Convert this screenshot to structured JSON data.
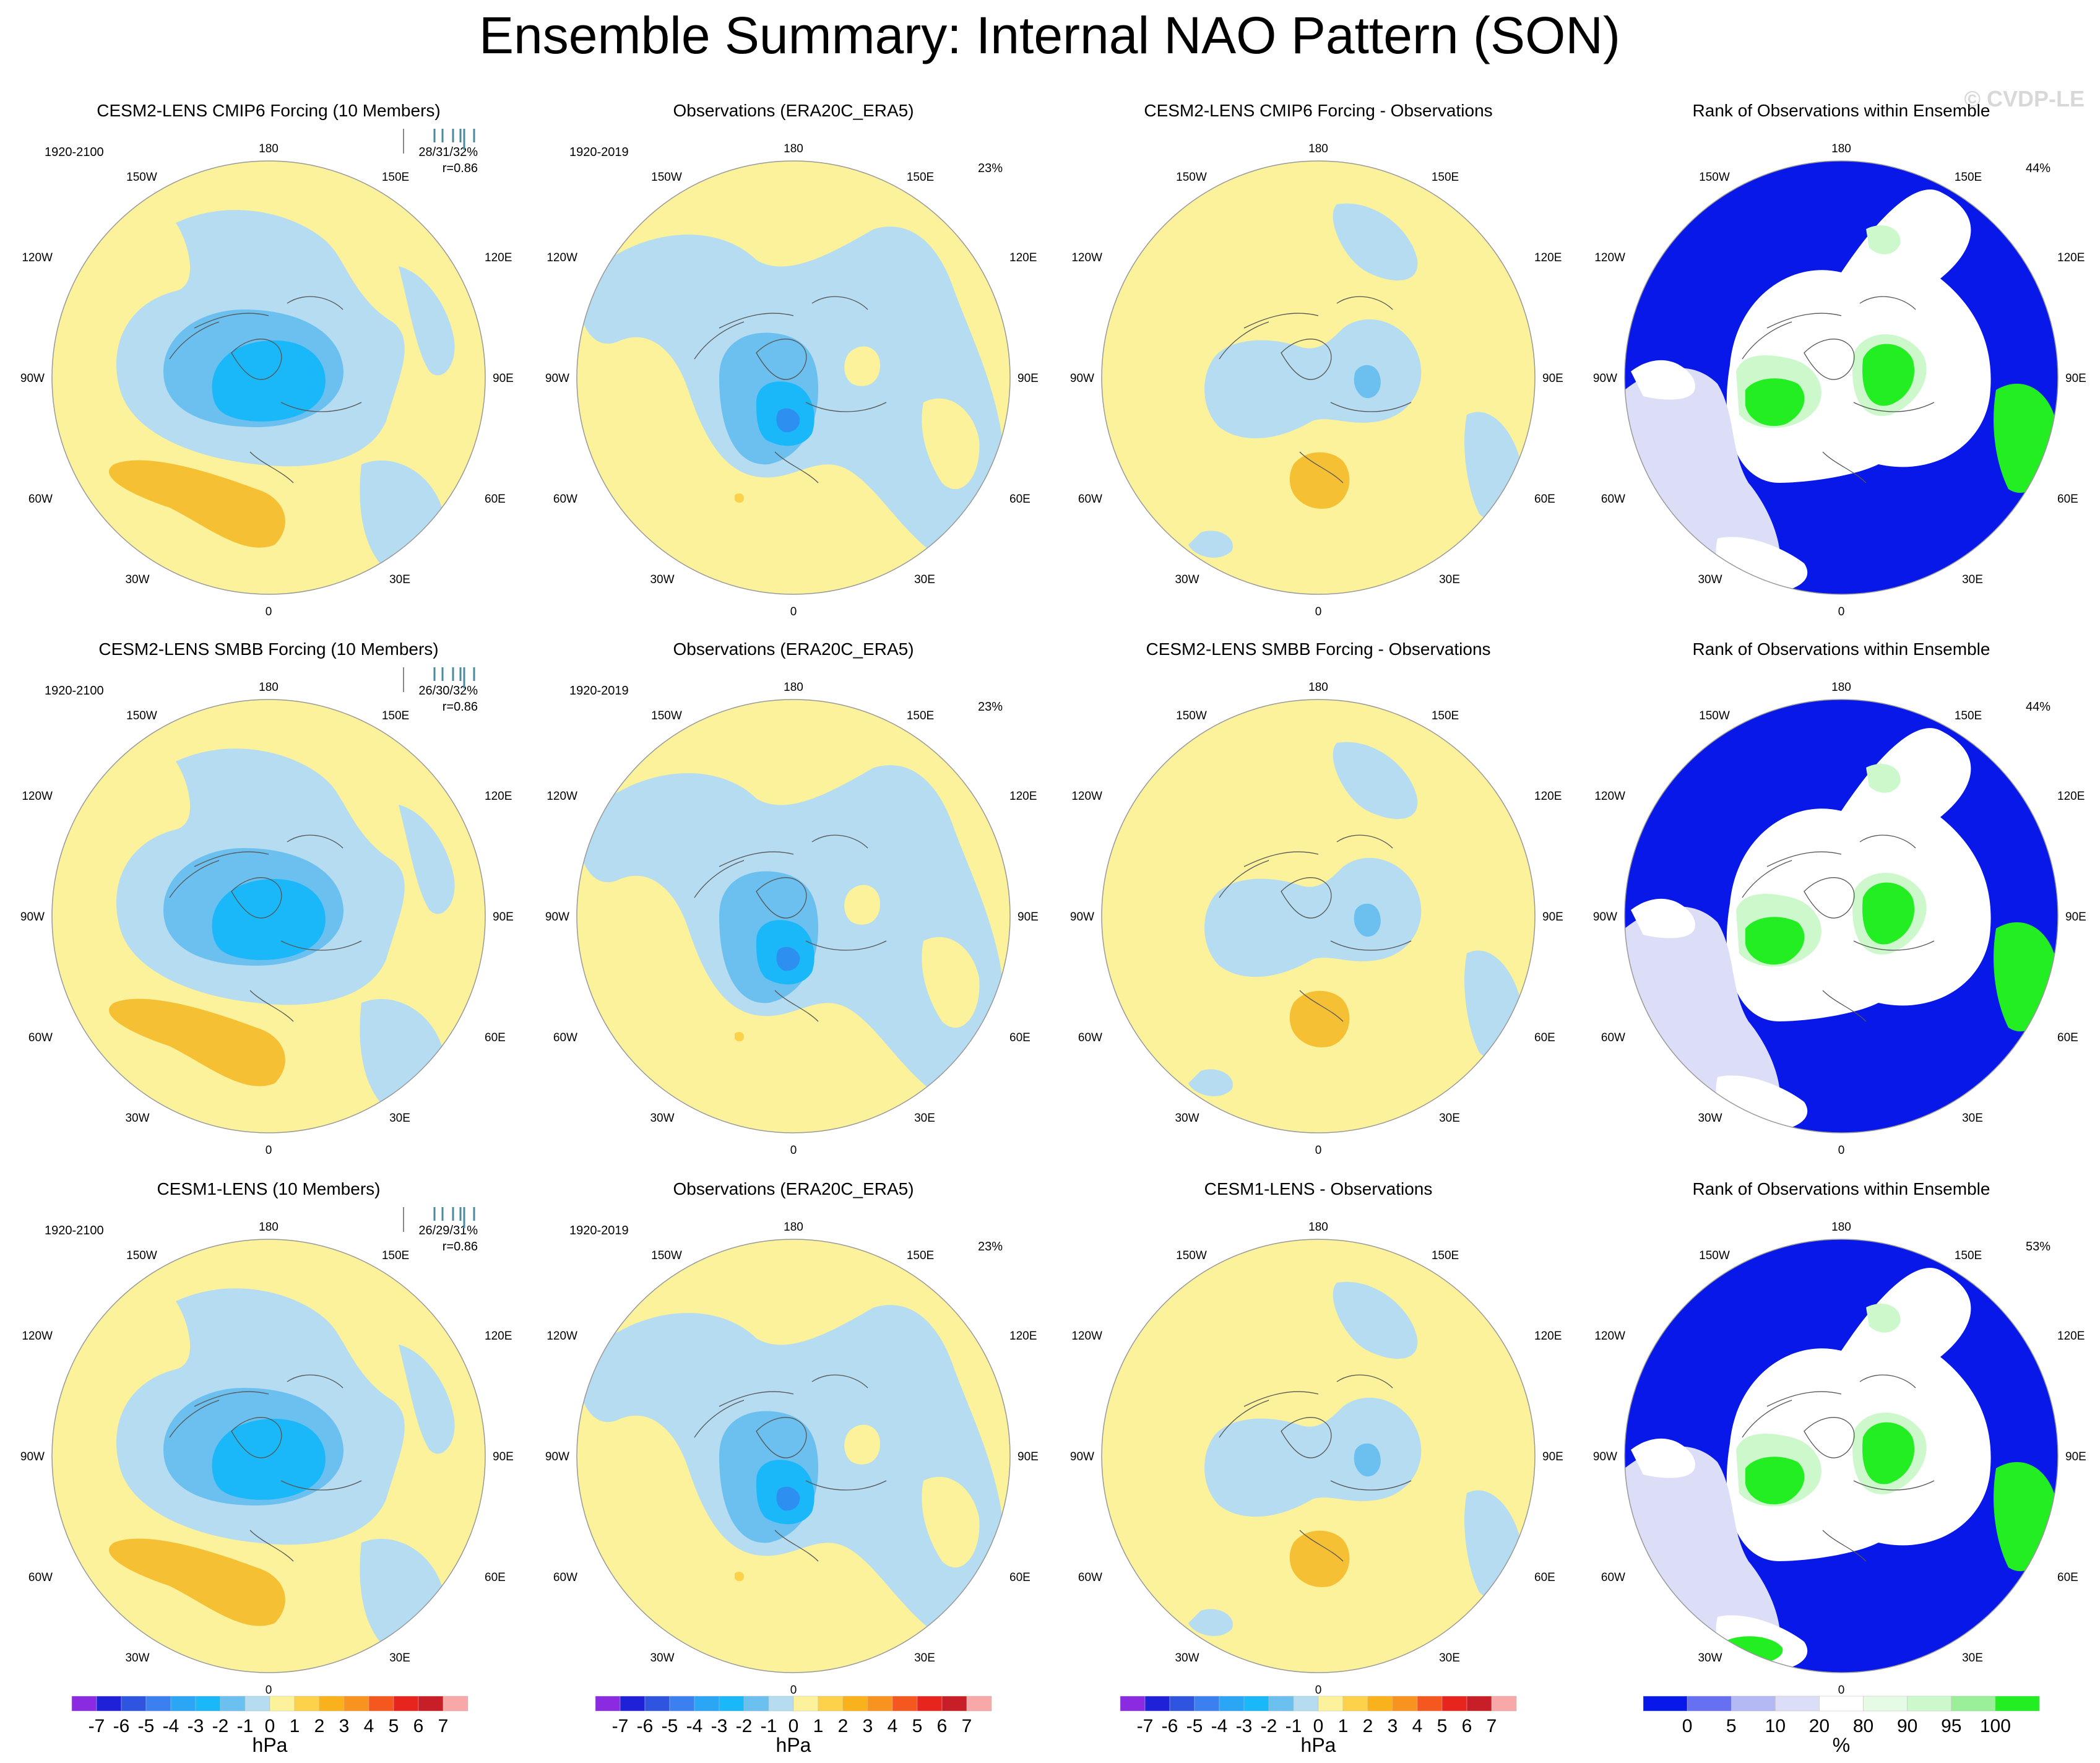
{
  "title": "Ensemble Summary: Internal NAO Pattern (SON)",
  "watermark": "© CVDP-LE",
  "colors": {
    "yellow": "#fbf29b",
    "lightblue": "#b5dcf0",
    "blue1": "#6cc0ef",
    "blue2": "#1ab8f8",
    "blue3": "#2d8ff0",
    "orange1": "#fcd24a",
    "orange2": "#f5c034",
    "rank_blue": "#0818e8",
    "rank_lav": "#dcdef8",
    "rank_white": "#ffffff",
    "rank_lgreen": "#ccf8cc",
    "rank_green": "#22ee22",
    "model_title_1": "#12607a",
    "model_title_2": "#5a8a5e",
    "model_title_3": "#c8c27a"
  },
  "grid_labels": {
    "top": "180",
    "bottom": "0",
    "left": "90W",
    "right": "90E",
    "upper_left_1": "150W",
    "upper_left_2": "120W",
    "upper_right_1": "150E",
    "upper_right_2": "120E",
    "lower_left_1": "60W",
    "lower_left_2": "30W",
    "lower_right_1": "60E",
    "lower_right_2": "30E"
  },
  "rows": [
    {
      "model": {
        "title": "CESM2-LENS CMIP6 Forcing (10 Members)",
        "period": "1920-2100",
        "pct": "28/31/32%",
        "r": "r=0.86"
      },
      "obs": {
        "title": "Observations (ERA20C_ERA5)",
        "period": "1920-2019",
        "pct": "23%"
      },
      "diff": {
        "title": "CESM2-LENS CMIP6 Forcing - Observations"
      },
      "rank": {
        "title": "Rank of Observations within Ensemble",
        "pct": "44%"
      }
    },
    {
      "model": {
        "title": "CESM2-LENS SMBB Forcing (10 Members)",
        "period": "1920-2100",
        "pct": "26/30/32%",
        "r": "r=0.86"
      },
      "obs": {
        "title": "Observations (ERA20C_ERA5)",
        "period": "1920-2019",
        "pct": "23%"
      },
      "diff": {
        "title": "CESM2-LENS SMBB Forcing - Observations"
      },
      "rank": {
        "title": "Rank of Observations within Ensemble",
        "pct": "44%"
      }
    },
    {
      "model": {
        "title": "CESM1-LENS (10 Members)",
        "period": "1920-2100",
        "pct": "26/29/31%",
        "r": "r=0.86"
      },
      "obs": {
        "title": "Observations (ERA20C_ERA5)",
        "period": "1920-2019",
        "pct": "23%"
      },
      "diff": {
        "title": "CESM1-LENS - Observations"
      },
      "rank": {
        "title": "Rank of Observations within Ensemble",
        "pct": "53%"
      }
    }
  ],
  "colorbar_hpa": {
    "unit": "hPa",
    "labels": [
      "-7",
      "-6",
      "-5",
      "-4",
      "-3",
      "-2",
      "-1",
      "0",
      "1",
      "2",
      "3",
      "4",
      "5",
      "6",
      "7"
    ],
    "colors": [
      "#8a2be2",
      "#2020d8",
      "#2f55e0",
      "#3b7ff0",
      "#2aa6f5",
      "#1ab8f8",
      "#6cc0ef",
      "#b5dcf0",
      "#fbf29b",
      "#fcd24a",
      "#f9b21c",
      "#f7931e",
      "#f5581e",
      "#e8241e",
      "#c81e28",
      "#f8a8a8"
    ]
  },
  "colorbar_rank": {
    "unit": "%",
    "labels": [
      "0",
      "5",
      "10",
      "20",
      "80",
      "90",
      "95",
      "100"
    ],
    "colors": [
      "#0818e8",
      "#6670f0",
      "#b4b8f4",
      "#dcdef8",
      "#ffffff",
      "#e6fbe6",
      "#ccf8cc",
      "#99f099",
      "#22ee22"
    ]
  }
}
